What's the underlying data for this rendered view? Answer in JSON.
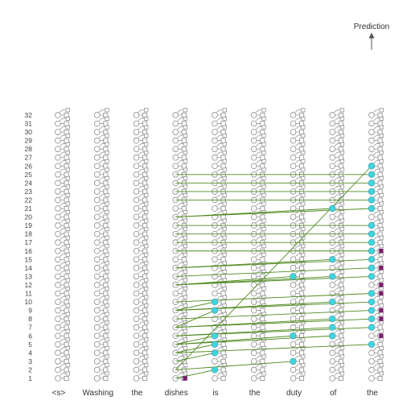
{
  "tokens": [
    "<s>",
    "Washing",
    "the",
    "dishes",
    "is",
    "the",
    "duty",
    "of",
    "the"
  ],
  "num_layers": 32,
  "prediction_label": "Prediction",
  "colors": {
    "node_stroke": "#8c8c8c",
    "node_fill": "#ffffff",
    "active_node": "#3fd6e0",
    "active_stroke": "#4aa6b0",
    "edge": "#4f8a1f",
    "marker": "#7a1f6e",
    "arrow": "#555555"
  },
  "active_nodes": [
    {
      "token": 8,
      "layer": 5
    },
    {
      "token": 8,
      "layer": 7
    },
    {
      "token": 8,
      "layer": 8
    },
    {
      "token": 8,
      "layer": 9
    },
    {
      "token": 8,
      "layer": 10
    },
    {
      "token": 8,
      "layer": 11
    },
    {
      "token": 8,
      "layer": 13
    },
    {
      "token": 8,
      "layer": 14
    },
    {
      "token": 8,
      "layer": 15
    },
    {
      "token": 8,
      "layer": 16
    },
    {
      "token": 8,
      "layer": 17
    },
    {
      "token": 8,
      "layer": 18
    },
    {
      "token": 8,
      "layer": 19
    },
    {
      "token": 8,
      "layer": 21
    },
    {
      "token": 8,
      "layer": 22
    },
    {
      "token": 8,
      "layer": 23
    },
    {
      "token": 8,
      "layer": 24
    },
    {
      "token": 8,
      "layer": 25
    },
    {
      "token": 8,
      "layer": 26
    },
    {
      "token": 7,
      "layer": 6
    },
    {
      "token": 7,
      "layer": 7
    },
    {
      "token": 7,
      "layer": 8
    },
    {
      "token": 7,
      "layer": 10
    },
    {
      "token": 7,
      "layer": 13
    },
    {
      "token": 7,
      "layer": 15
    },
    {
      "token": 7,
      "layer": 21
    },
    {
      "token": 6,
      "layer": 3
    },
    {
      "token": 6,
      "layer": 6
    },
    {
      "token": 6,
      "layer": 13
    },
    {
      "token": 4,
      "layer": 2
    },
    {
      "token": 4,
      "layer": 4
    },
    {
      "token": 4,
      "layer": 5
    },
    {
      "token": 4,
      "layer": 6
    },
    {
      "token": 4,
      "layer": 9
    },
    {
      "token": 4,
      "layer": 10
    }
  ],
  "markers": [
    {
      "token": 3,
      "layer": 1
    },
    {
      "token": 8,
      "layer": 6
    },
    {
      "token": 8,
      "layer": 8
    },
    {
      "token": 8,
      "layer": 9
    },
    {
      "token": 8,
      "layer": 11
    },
    {
      "token": 8,
      "layer": 12
    },
    {
      "token": 8,
      "layer": 14
    },
    {
      "token": 8,
      "layer": 16
    }
  ],
  "edges": [
    {
      "from": {
        "token": 3,
        "layer": 2
      },
      "to": {
        "token": 8,
        "layer": 26
      }
    },
    {
      "from": {
        "token": 3,
        "layer": 25
      },
      "to": {
        "token": 8,
        "layer": 25
      }
    },
    {
      "from": {
        "token": 3,
        "layer": 24
      },
      "to": {
        "token": 8,
        "layer": 24
      }
    },
    {
      "from": {
        "token": 3,
        "layer": 23
      },
      "to": {
        "token": 8,
        "layer": 23
      }
    },
    {
      "from": {
        "token": 3,
        "layer": 22
      },
      "to": {
        "token": 8,
        "layer": 22
      }
    },
    {
      "from": {
        "token": 3,
        "layer": 20
      },
      "to": {
        "token": 8,
        "layer": 21
      }
    },
    {
      "from": {
        "token": 3,
        "layer": 20
      },
      "to": {
        "token": 7,
        "layer": 21
      }
    },
    {
      "from": {
        "token": 3,
        "layer": 19
      },
      "to": {
        "token": 8,
        "layer": 19
      }
    },
    {
      "from": {
        "token": 3,
        "layer": 18
      },
      "to": {
        "token": 8,
        "layer": 18
      }
    },
    {
      "from": {
        "token": 3,
        "layer": 17
      },
      "to": {
        "token": 8,
        "layer": 17
      }
    },
    {
      "from": {
        "token": 3,
        "layer": 16
      },
      "to": {
        "token": 8,
        "layer": 16
      }
    },
    {
      "from": {
        "token": 3,
        "layer": 14
      },
      "to": {
        "token": 8,
        "layer": 15
      }
    },
    {
      "from": {
        "token": 3,
        "layer": 14
      },
      "to": {
        "token": 7,
        "layer": 15
      }
    },
    {
      "from": {
        "token": 3,
        "layer": 13
      },
      "to": {
        "token": 8,
        "layer": 14
      }
    },
    {
      "from": {
        "token": 3,
        "layer": 12
      },
      "to": {
        "token": 8,
        "layer": 13
      }
    },
    {
      "from": {
        "token": 3,
        "layer": 12
      },
      "to": {
        "token": 7,
        "layer": 13
      }
    },
    {
      "from": {
        "token": 3,
        "layer": 12
      },
      "to": {
        "token": 6,
        "layer": 13
      }
    },
    {
      "from": {
        "token": 3,
        "layer": 10
      },
      "to": {
        "token": 8,
        "layer": 11
      }
    },
    {
      "from": {
        "token": 3,
        "layer": 9
      },
      "to": {
        "token": 8,
        "layer": 10
      }
    },
    {
      "from": {
        "token": 3,
        "layer": 9
      },
      "to": {
        "token": 7,
        "layer": 10
      }
    },
    {
      "from": {
        "token": 3,
        "layer": 9
      },
      "to": {
        "token": 4,
        "layer": 10
      }
    },
    {
      "from": {
        "token": 3,
        "layer": 8
      },
      "to": {
        "token": 8,
        "layer": 9
      }
    },
    {
      "from": {
        "token": 3,
        "layer": 7
      },
      "to": {
        "token": 4,
        "layer": 9
      }
    },
    {
      "from": {
        "token": 3,
        "layer": 7
      },
      "to": {
        "token": 8,
        "layer": 8
      }
    },
    {
      "from": {
        "token": 3,
        "layer": 7
      },
      "to": {
        "token": 7,
        "layer": 8
      }
    },
    {
      "from": {
        "token": 3,
        "layer": 6
      },
      "to": {
        "token": 8,
        "layer": 7
      }
    },
    {
      "from": {
        "token": 3,
        "layer": 6
      },
      "to": {
        "token": 7,
        "layer": 7
      }
    },
    {
      "from": {
        "token": 3,
        "layer": 5
      },
      "to": {
        "token": 4,
        "layer": 6
      }
    },
    {
      "from": {
        "token": 3,
        "layer": 5
      },
      "to": {
        "token": 7,
        "layer": 6
      }
    },
    {
      "from": {
        "token": 3,
        "layer": 5
      },
      "to": {
        "token": 6,
        "layer": 6
      }
    },
    {
      "from": {
        "token": 3,
        "layer": 4
      },
      "to": {
        "token": 4,
        "layer": 5
      }
    },
    {
      "from": {
        "token": 3,
        "layer": 4
      },
      "to": {
        "token": 8,
        "layer": 5
      }
    },
    {
      "from": {
        "token": 3,
        "layer": 3
      },
      "to": {
        "token": 4,
        "layer": 4
      }
    },
    {
      "from": {
        "token": 3,
        "layer": 2
      },
      "to": {
        "token": 6,
        "layer": 3
      }
    },
    {
      "from": {
        "token": 3,
        "layer": 1
      },
      "to": {
        "token": 4,
        "layer": 2
      }
    }
  ]
}
